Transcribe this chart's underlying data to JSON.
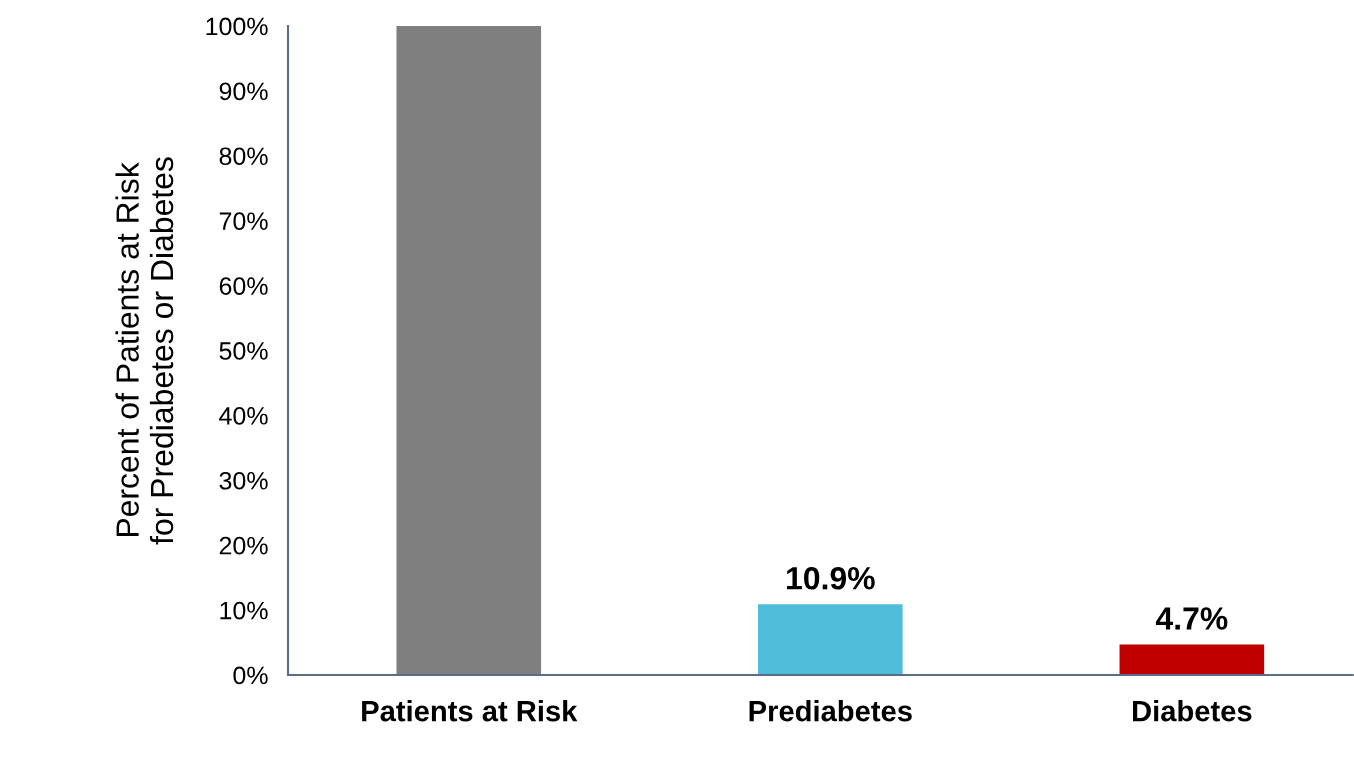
{
  "chart_data": {
    "type": "bar",
    "ylabel": "Percent of Patients at Risk\nfor Prediabetes or Diabetes",
    "categories": [
      "Patients at Risk",
      "Prediabetes",
      "Diabetes"
    ],
    "values": [
      100,
      10.9,
      4.7
    ],
    "colors": [
      "#7f7f7f",
      "#4fbcd9",
      "#c00000"
    ],
    "value_labels": [
      null,
      "10.9%",
      "4.7%"
    ],
    "ylim": [
      0,
      100
    ],
    "yticks": [
      {
        "value": 0,
        "label": "0%"
      },
      {
        "value": 10,
        "label": "10%"
      },
      {
        "value": 20,
        "label": "20%"
      },
      {
        "value": 30,
        "label": "30%"
      },
      {
        "value": 40,
        "label": "40%"
      },
      {
        "value": 50,
        "label": "50%"
      },
      {
        "value": 60,
        "label": "60%"
      },
      {
        "value": 70,
        "label": "70%"
      },
      {
        "value": 80,
        "label": "80%"
      },
      {
        "value": 90,
        "label": "90%"
      },
      {
        "value": 100,
        "label": "100%"
      }
    ],
    "grid": false,
    "legend": false
  }
}
